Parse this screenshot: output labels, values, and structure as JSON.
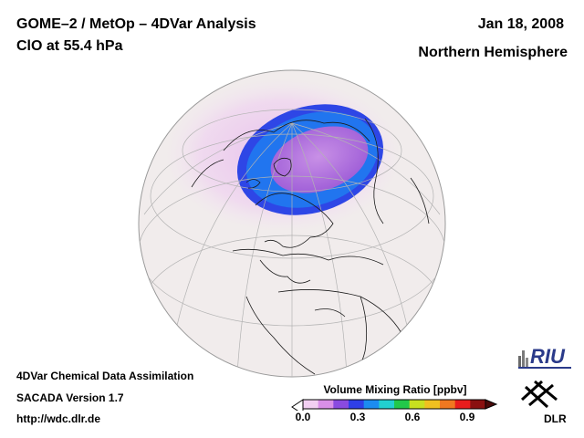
{
  "header": {
    "title": "GOME–2 / MetOp – 4DVar Analysis",
    "subtitle": "ClO at 55.4 hPa",
    "date": "Jan 18, 2008",
    "region": "Northern Hemisphere"
  },
  "footer": {
    "line1": "4DVar Chemical Data Assimilation",
    "line2": "SACADA Version 1.7",
    "line3": "http://wdc.dlr.de"
  },
  "colorbar": {
    "title": "Volume Mixing Ratio [ppbv]",
    "ticks": [
      "0.0",
      "0.3",
      "0.6",
      "0.9"
    ],
    "tick_values": [
      0.0,
      0.3,
      0.6,
      0.9
    ],
    "range": [
      0.0,
      1.0
    ],
    "colors": [
      "#f2cff2",
      "#d98fe8",
      "#8a4be0",
      "#2f3fe8",
      "#1c8cf0",
      "#22d0d0",
      "#22c84a",
      "#c8e020",
      "#f0c020",
      "#f07820",
      "#e81c1c",
      "#8a1010"
    ]
  },
  "logos": {
    "riu": "RIU",
    "dlr": "DLR"
  },
  "map": {
    "projection": "orthographic",
    "center_lat": 55,
    "center_lon": 10,
    "variable": "ClO",
    "vortex_peak_ppbv": 0.35,
    "background_ppbv": 0.05
  }
}
